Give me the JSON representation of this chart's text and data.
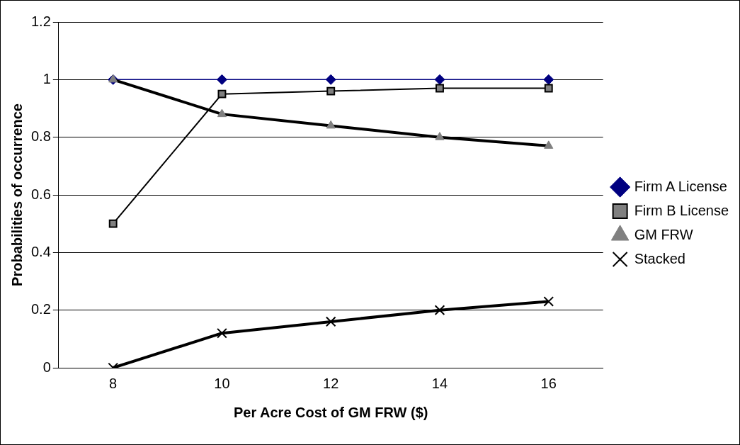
{
  "chart_data": {
    "type": "line",
    "xlabel": "Per Acre Cost of GM FRW ($)",
    "ylabel": "Probabilities of occurrence",
    "categories": [
      "8",
      "10",
      "12",
      "14",
      "16"
    ],
    "series": [
      {
        "name": "Firm A License",
        "color": "#000080",
        "marker": "diamond",
        "values": [
          1,
          1,
          1,
          1,
          1
        ]
      },
      {
        "name": "Firm B License",
        "color": "#000000",
        "marker": "square",
        "values": [
          0.5,
          0.95,
          0.96,
          0.97,
          0.97
        ]
      },
      {
        "name": "GM FRW",
        "color": "#000000",
        "marker": "triangle",
        "values": [
          1,
          0.88,
          0.84,
          0.8,
          0.77
        ]
      },
      {
        "name": "Stacked",
        "color": "#000000",
        "marker": "cross",
        "values": [
          0,
          0.12,
          0.16,
          0.2,
          0.23
        ]
      }
    ],
    "ylim": [
      0,
      1.2
    ],
    "yticks": [
      0,
      0.2,
      0.4,
      0.6,
      0.8,
      1,
      1.2
    ],
    "grid": "y",
    "legend": "right"
  }
}
